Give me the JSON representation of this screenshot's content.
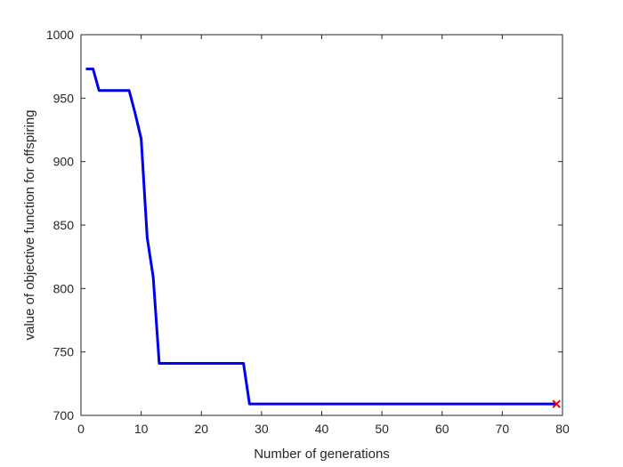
{
  "chart_data": {
    "type": "line",
    "title": "",
    "xlabel": "Number of generations",
    "ylabel": "value of objective function for offspiring",
    "xlim": [
      0,
      80
    ],
    "ylim": [
      700,
      1000
    ],
    "xticks": [
      0,
      10,
      20,
      30,
      40,
      50,
      60,
      70,
      80
    ],
    "yticks": [
      700,
      750,
      800,
      850,
      900,
      950,
      1000
    ],
    "grid": false,
    "series": [
      {
        "color": "#0000ee",
        "points": [
          [
            1,
            973
          ],
          [
            2,
            973
          ],
          [
            3,
            956
          ],
          [
            4,
            956
          ],
          [
            5,
            956
          ],
          [
            6,
            956
          ],
          [
            7,
            956
          ],
          [
            8,
            956
          ],
          [
            9,
            938
          ],
          [
            10,
            918
          ],
          [
            11,
            840
          ],
          [
            12,
            809
          ],
          [
            13,
            741
          ],
          [
            14,
            741
          ],
          [
            15,
            741
          ],
          [
            16,
            741
          ],
          [
            17,
            741
          ],
          [
            18,
            741
          ],
          [
            19,
            741
          ],
          [
            20,
            741
          ],
          [
            21,
            741
          ],
          [
            22,
            741
          ],
          [
            23,
            741
          ],
          [
            24,
            741
          ],
          [
            25,
            741
          ],
          [
            26,
            741
          ],
          [
            27,
            741
          ],
          [
            28,
            709
          ],
          [
            29,
            709
          ],
          [
            30,
            709
          ],
          [
            40,
            709
          ],
          [
            50,
            709
          ],
          [
            60,
            709
          ],
          [
            70,
            709
          ],
          [
            79,
            709
          ]
        ]
      }
    ],
    "markers": [
      {
        "x": 79,
        "y": 709,
        "symbol": "x",
        "color": "#ee0000"
      }
    ]
  }
}
